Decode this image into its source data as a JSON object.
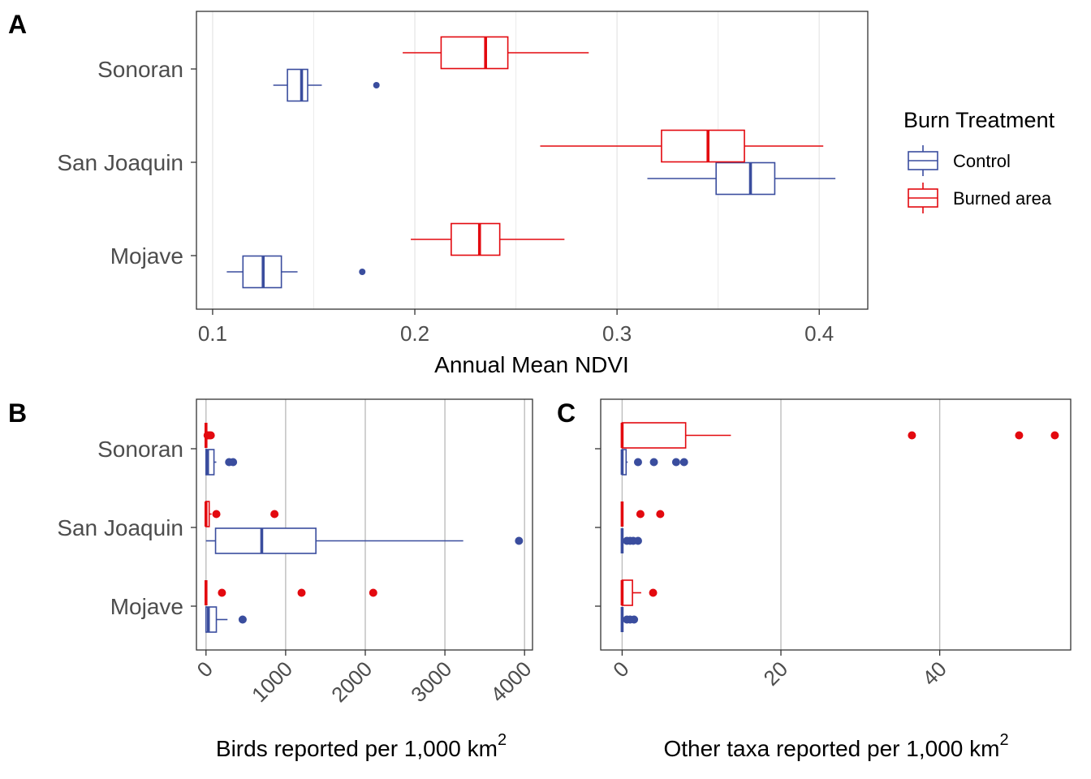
{
  "colors": {
    "Control": "#3a4d9e",
    "Burned area": "#e3090f",
    "grid_major": "#bdbdbd",
    "grid_minor": "#ebebeb",
    "axis_text": "#4d4d4d"
  },
  "legend": {
    "title": "Burn Treatment",
    "items": [
      "Control",
      "Burned area"
    ],
    "placement": "right"
  },
  "chart_data": [
    {
      "panel": "A",
      "type": "box",
      "orientation": "horizontal",
      "xlabel": "Annual Mean NDVI",
      "xlim": [
        0.092,
        0.424
      ],
      "xticks": [
        0.1,
        0.2,
        0.3,
        0.4
      ],
      "xtick_labels": [
        "0.1",
        "0.2",
        "0.3",
        "0.4"
      ],
      "rotate_ticks": false,
      "grid": "light",
      "categories": [
        "Sonoran",
        "San Joaquin",
        "Mojave"
      ],
      "series": [
        {
          "name": "Control",
          "category": "Sonoran",
          "min": 0.13,
          "q1": 0.137,
          "median": 0.144,
          "q3": 0.147,
          "max": 0.154,
          "outliers": [
            0.181
          ]
        },
        {
          "name": "Burned area",
          "category": "Sonoran",
          "min": 0.194,
          "q1": 0.213,
          "median": 0.235,
          "q3": 0.246,
          "max": 0.286,
          "outliers": []
        },
        {
          "name": "Control",
          "category": "San Joaquin",
          "min": 0.315,
          "q1": 0.349,
          "median": 0.366,
          "q3": 0.378,
          "max": 0.408,
          "outliers": []
        },
        {
          "name": "Burned area",
          "category": "San Joaquin",
          "min": 0.262,
          "q1": 0.322,
          "median": 0.345,
          "q3": 0.363,
          "max": 0.402,
          "outliers": []
        },
        {
          "name": "Control",
          "category": "Mojave",
          "min": 0.107,
          "q1": 0.115,
          "median": 0.125,
          "q3": 0.134,
          "max": 0.142,
          "outliers": [
            0.174
          ]
        },
        {
          "name": "Burned area",
          "category": "Mojave",
          "min": 0.198,
          "q1": 0.218,
          "median": 0.232,
          "q3": 0.242,
          "max": 0.274,
          "outliers": []
        }
      ]
    },
    {
      "panel": "B",
      "type": "box",
      "orientation": "horizontal",
      "xlabel": "Birds reported per 1,000 km",
      "xlabel_superscript": "2",
      "xlim": [
        -120,
        4100
      ],
      "xticks": [
        0,
        1000,
        2000,
        3000,
        4000
      ],
      "xtick_labels": [
        "0",
        "1000",
        "2000",
        "3000",
        "4000"
      ],
      "rotate_ticks": true,
      "grid": "dark",
      "categories": [
        "Sonoran",
        "San Joaquin",
        "Mojave"
      ],
      "series": [
        {
          "name": "Control",
          "category": "Sonoran",
          "min": 0,
          "q1": 0,
          "median": 20,
          "q3": 100,
          "max": 130,
          "outliers": [
            290,
            340
          ]
        },
        {
          "name": "Burned area",
          "category": "Sonoran",
          "min": 0,
          "q1": 0,
          "median": 0,
          "q3": 0,
          "max": 0,
          "outliers": [
            20,
            40,
            60
          ]
        },
        {
          "name": "Control",
          "category": "San Joaquin",
          "min": 0,
          "q1": 120,
          "median": 700,
          "q3": 1380,
          "max": 3230,
          "outliers": [
            3930
          ]
        },
        {
          "name": "Burned area",
          "category": "San Joaquin",
          "min": 0,
          "q1": 0,
          "median": 0,
          "q3": 40,
          "max": 70,
          "outliers": [
            130,
            860
          ]
        },
        {
          "name": "Control",
          "category": "Mojave",
          "min": 0,
          "q1": 0,
          "median": 30,
          "q3": 130,
          "max": 270,
          "outliers": [
            460
          ]
        },
        {
          "name": "Burned area",
          "category": "Mojave",
          "min": 0,
          "q1": 0,
          "median": 0,
          "q3": 0,
          "max": 0,
          "outliers": [
            200,
            1200,
            2100
          ]
        }
      ]
    },
    {
      "panel": "C",
      "type": "box",
      "orientation": "horizontal",
      "xlabel": "Other taxa reported per 1,000 km",
      "xlabel_superscript": "2",
      "xlim": [
        -2.7,
        56.5
      ],
      "xticks": [
        0,
        20,
        40
      ],
      "xtick_labels": [
        "0",
        "20",
        "40"
      ],
      "rotate_ticks": true,
      "grid": "dark",
      "categories": [
        "Sonoran",
        "San Joaquin",
        "Mojave"
      ],
      "series": [
        {
          "name": "Control",
          "category": "Sonoran",
          "min": 0,
          "q1": 0,
          "median": 0,
          "q3": 0.5,
          "max": 0.7,
          "outliers": [
            2,
            4,
            6.8,
            7.8
          ]
        },
        {
          "name": "Burned area",
          "category": "Sonoran",
          "min": 0,
          "q1": 0,
          "median": 0,
          "q3": 8,
          "max": 13.7,
          "outliers": [
            36.5,
            50,
            54.5
          ]
        },
        {
          "name": "Control",
          "category": "San Joaquin",
          "min": 0,
          "q1": 0,
          "median": 0,
          "q3": 0,
          "max": 0,
          "outliers": [
            0.6,
            1,
            1.4,
            2
          ]
        },
        {
          "name": "Burned area",
          "category": "San Joaquin",
          "min": 0,
          "q1": 0,
          "median": 0,
          "q3": 0,
          "max": 0,
          "outliers": [
            2.3,
            4.8
          ]
        },
        {
          "name": "Control",
          "category": "Mojave",
          "min": 0,
          "q1": 0,
          "median": 0,
          "q3": 0,
          "max": 0,
          "outliers": [
            0.6,
            1,
            1.5
          ]
        },
        {
          "name": "Burned area",
          "category": "Mojave",
          "min": 0,
          "q1": 0,
          "median": 0,
          "q3": 1.3,
          "max": 2.4,
          "outliers": [
            3.9
          ]
        }
      ]
    }
  ]
}
